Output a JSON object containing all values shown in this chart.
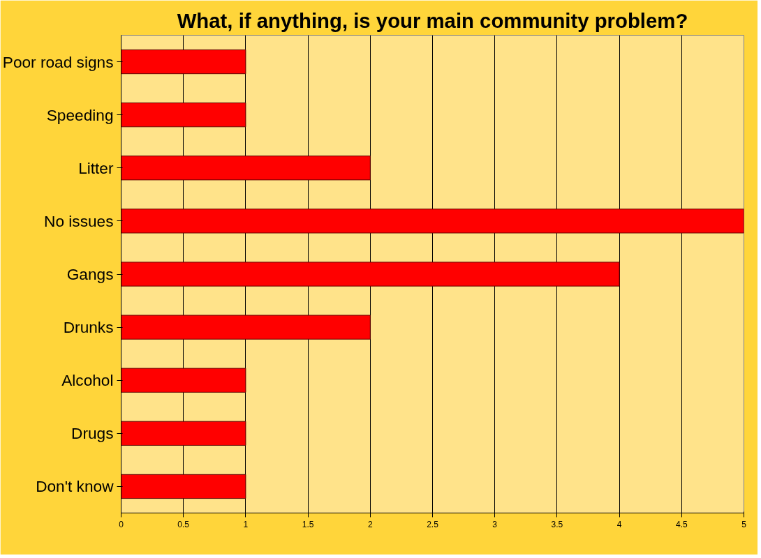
{
  "chart_data": {
    "type": "bar",
    "orientation": "horizontal",
    "title": "What, if anything, is your main community problem?",
    "categories": [
      "Poor road signs",
      "Speeding",
      "Litter",
      "No issues",
      "Gangs",
      "Drunks",
      "Alcohol",
      "Drugs",
      "Don't know"
    ],
    "values": [
      1,
      1,
      2,
      5,
      4,
      2,
      1,
      1,
      1
    ],
    "color": "#ff0000",
    "xlim": [
      0,
      5
    ],
    "xticks": [
      0,
      0.5,
      1,
      1.5,
      2,
      2.5,
      3,
      3.5,
      4,
      4.5,
      5
    ],
    "grid": "x"
  }
}
